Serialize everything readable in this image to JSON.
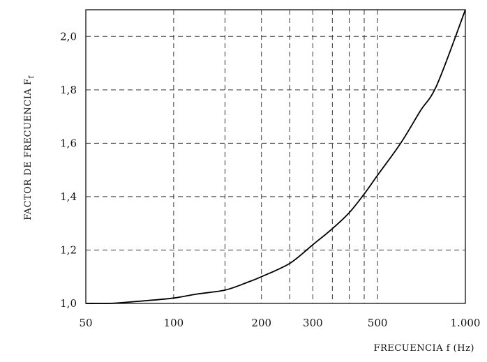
{
  "chart_data": {
    "type": "line",
    "xscale": "log",
    "xlim": [
      50,
      1000
    ],
    "ylim": [
      1.0,
      2.1
    ],
    "grid": true,
    "xlabel": "FRECUENCIA  f  (Hz)",
    "ylabel": "FACTOR  DE  FRECUENCIA   F",
    "ylabel_subscript": "f",
    "x_tick_labels": [
      {
        "value": 50,
        "label": "50"
      },
      {
        "value": 100,
        "label": "100"
      },
      {
        "value": 200,
        "label": "200"
      },
      {
        "value": 300,
        "label": "300"
      },
      {
        "value": 500,
        "label": "500"
      },
      {
        "value": 1000,
        "label": "1.000"
      }
    ],
    "x_grid_values": [
      100,
      150,
      200,
      250,
      300,
      350,
      400,
      450,
      500
    ],
    "y_tick_labels": [
      {
        "value": 1.0,
        "label": "1,0"
      },
      {
        "value": 1.2,
        "label": "1,2"
      },
      {
        "value": 1.4,
        "label": "1,4"
      },
      {
        "value": 1.6,
        "label": "1,6"
      },
      {
        "value": 1.8,
        "label": "1,8"
      },
      {
        "value": 2.0,
        "label": "2,0"
      }
    ],
    "series": [
      {
        "x": [
          50,
          60,
          70,
          80,
          100,
          120,
          150,
          180,
          200,
          250,
          300,
          350,
          400,
          450,
          500,
          600,
          700,
          800,
          1000
        ],
        "y": [
          1.0,
          1.0,
          1.005,
          1.01,
          1.02,
          1.035,
          1.05,
          1.08,
          1.1,
          1.15,
          1.22,
          1.28,
          1.34,
          1.41,
          1.48,
          1.6,
          1.72,
          1.82,
          2.1
        ]
      }
    ]
  }
}
